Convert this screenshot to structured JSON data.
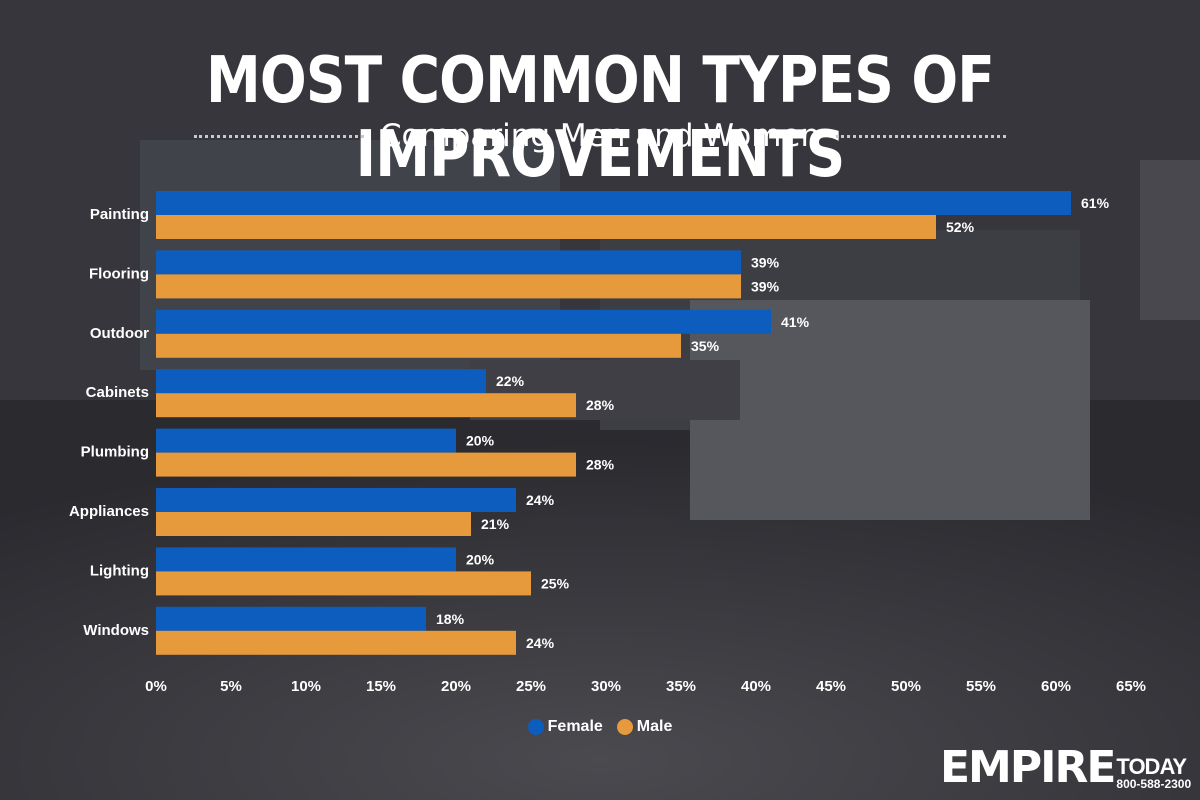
{
  "header": {
    "title": "MOST COMMON TYPES OF IMPROVEMENTS",
    "subtitle": "Comparing Men and Women"
  },
  "legend": {
    "female_label": "Female",
    "male_label": "Male"
  },
  "logo": {
    "brand": "EMPIRE",
    "tagline": "TODAY",
    "phone": "800-588-2300"
  },
  "colors": {
    "female": "#0d5dbf",
    "male": "#e79a3c",
    "text": "#ffffff"
  },
  "chart_data": {
    "type": "bar",
    "orientation": "horizontal",
    "categories": [
      "Painting",
      "Flooring",
      "Outdoor",
      "Cabinets",
      "Plumbing",
      "Appliances",
      "Lighting",
      "Windows"
    ],
    "series": [
      {
        "name": "Female",
        "values": [
          61,
          39,
          41,
          22,
          20,
          24,
          20,
          18
        ],
        "labels": [
          "61%",
          "39%",
          "41%",
          "22%",
          "20%",
          "24%",
          "20%",
          "18%"
        ]
      },
      {
        "name": "Male",
        "values": [
          52,
          39,
          35,
          28,
          28,
          21,
          25,
          24
        ],
        "labels": [
          "52%",
          "39%",
          "35%",
          "28%",
          "28%",
          "21%",
          "25%",
          "24%"
        ]
      }
    ],
    "xlim": [
      0,
      65
    ],
    "x_ticks": [
      0,
      5,
      10,
      15,
      20,
      25,
      30,
      35,
      40,
      45,
      50,
      55,
      60,
      65
    ],
    "x_tick_labels": [
      "0%",
      "5%",
      "10%",
      "15%",
      "20%",
      "25%",
      "30%",
      "35%",
      "40%",
      "45%",
      "50%",
      "55%",
      "60%",
      "65%"
    ],
    "legend_position": "bottom",
    "grid": false
  }
}
